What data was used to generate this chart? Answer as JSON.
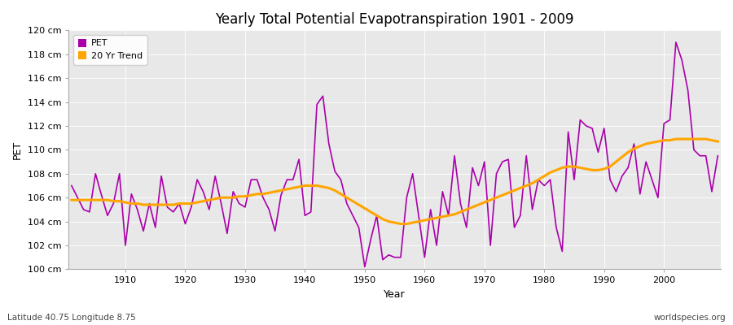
{
  "title": "Yearly Total Potential Evapotranspiration 1901 - 2009",
  "xlabel": "Year",
  "ylabel": "PET",
  "subtitle_left": "Latitude 40.75 Longitude 8.75",
  "subtitle_right": "worldspecies.org",
  "ylim": [
    100,
    120
  ],
  "ytick_labels": [
    "100 cm",
    "102 cm",
    "104 cm",
    "106 cm",
    "108 cm",
    "110 cm",
    "112 cm",
    "114 cm",
    "116 cm",
    "118 cm",
    "120 cm"
  ],
  "ytick_values": [
    100,
    102,
    104,
    106,
    108,
    110,
    112,
    114,
    116,
    118,
    120
  ],
  "pet_color": "#AA00AA",
  "trend_color": "#FFA500",
  "fig_bg_color": "#FFFFFF",
  "plot_bg_color": "#E8E8E8",
  "legend_pet": "PET",
  "legend_trend": "20 Yr Trend",
  "years": [
    1901,
    1902,
    1903,
    1904,
    1905,
    1906,
    1907,
    1908,
    1909,
    1910,
    1911,
    1912,
    1913,
    1914,
    1915,
    1916,
    1917,
    1918,
    1919,
    1920,
    1921,
    1922,
    1923,
    1924,
    1925,
    1926,
    1927,
    1928,
    1929,
    1930,
    1931,
    1932,
    1933,
    1934,
    1935,
    1936,
    1937,
    1938,
    1939,
    1940,
    1941,
    1942,
    1943,
    1944,
    1945,
    1946,
    1947,
    1948,
    1949,
    1950,
    1951,
    1952,
    1953,
    1954,
    1955,
    1956,
    1957,
    1958,
    1959,
    1960,
    1961,
    1962,
    1963,
    1964,
    1965,
    1966,
    1967,
    1968,
    1969,
    1970,
    1971,
    1972,
    1973,
    1974,
    1975,
    1976,
    1977,
    1978,
    1979,
    1980,
    1981,
    1982,
    1983,
    1984,
    1985,
    1986,
    1987,
    1988,
    1989,
    1990,
    1991,
    1992,
    1993,
    1994,
    1995,
    1996,
    1997,
    1998,
    1999,
    2000,
    2001,
    2002,
    2003,
    2004,
    2005,
    2006,
    2007,
    2008,
    2009
  ],
  "pet_values": [
    107.0,
    106.0,
    105.0,
    104.8,
    108.0,
    106.2,
    104.5,
    105.5,
    108.0,
    102.0,
    106.3,
    105.0,
    103.2,
    105.5,
    103.5,
    107.8,
    105.2,
    104.8,
    105.5,
    103.8,
    105.2,
    107.5,
    106.5,
    105.0,
    107.8,
    105.5,
    103.0,
    106.5,
    105.5,
    105.2,
    107.5,
    107.5,
    106.0,
    105.0,
    103.2,
    106.2,
    107.5,
    107.5,
    109.2,
    104.5,
    104.8,
    113.8,
    114.5,
    110.5,
    108.2,
    107.5,
    105.5,
    104.5,
    103.5,
    100.2,
    102.5,
    104.5,
    100.8,
    101.2,
    101.0,
    101.0,
    106.0,
    108.0,
    104.5,
    101.0,
    105.0,
    102.0,
    106.5,
    104.5,
    109.5,
    105.5,
    103.5,
    108.5,
    107.0,
    109.0,
    102.0,
    108.0,
    109.0,
    109.2,
    103.5,
    104.5,
    109.5,
    105.0,
    107.5,
    107.0,
    107.5,
    103.5,
    101.5,
    111.5,
    107.5,
    112.5,
    112.0,
    111.8,
    109.8,
    111.8,
    107.5,
    106.5,
    107.8,
    108.5,
    110.5,
    106.3,
    109.0,
    107.5,
    106.0,
    112.2,
    112.5,
    119.0,
    117.5,
    115.0,
    110.0,
    109.5,
    109.5,
    106.5,
    109.5
  ],
  "trend_values": [
    105.8,
    105.8,
    105.8,
    105.8,
    105.8,
    105.8,
    105.8,
    105.7,
    105.7,
    105.6,
    105.5,
    105.5,
    105.4,
    105.4,
    105.4,
    105.4,
    105.4,
    105.4,
    105.5,
    105.5,
    105.5,
    105.6,
    105.7,
    105.8,
    105.9,
    106.0,
    106.0,
    106.0,
    106.1,
    106.1,
    106.2,
    106.3,
    106.3,
    106.4,
    106.5,
    106.6,
    106.7,
    106.8,
    106.9,
    107.0,
    107.0,
    107.0,
    106.9,
    106.8,
    106.6,
    106.3,
    106.0,
    105.7,
    105.4,
    105.1,
    104.8,
    104.5,
    104.2,
    104.0,
    103.9,
    103.8,
    103.8,
    103.9,
    104.0,
    104.1,
    104.2,
    104.3,
    104.4,
    104.5,
    104.6,
    104.8,
    105.0,
    105.2,
    105.4,
    105.6,
    105.8,
    106.0,
    106.2,
    106.4,
    106.6,
    106.8,
    107.0,
    107.2,
    107.5,
    107.8,
    108.1,
    108.3,
    108.5,
    108.6,
    108.6,
    108.5,
    108.4,
    108.3,
    108.3,
    108.4,
    108.6,
    109.0,
    109.4,
    109.8,
    110.1,
    110.3,
    110.5,
    110.6,
    110.7,
    110.8,
    110.8,
    110.9,
    110.9,
    110.9,
    110.9,
    110.9,
    110.9,
    110.8,
    110.7
  ]
}
